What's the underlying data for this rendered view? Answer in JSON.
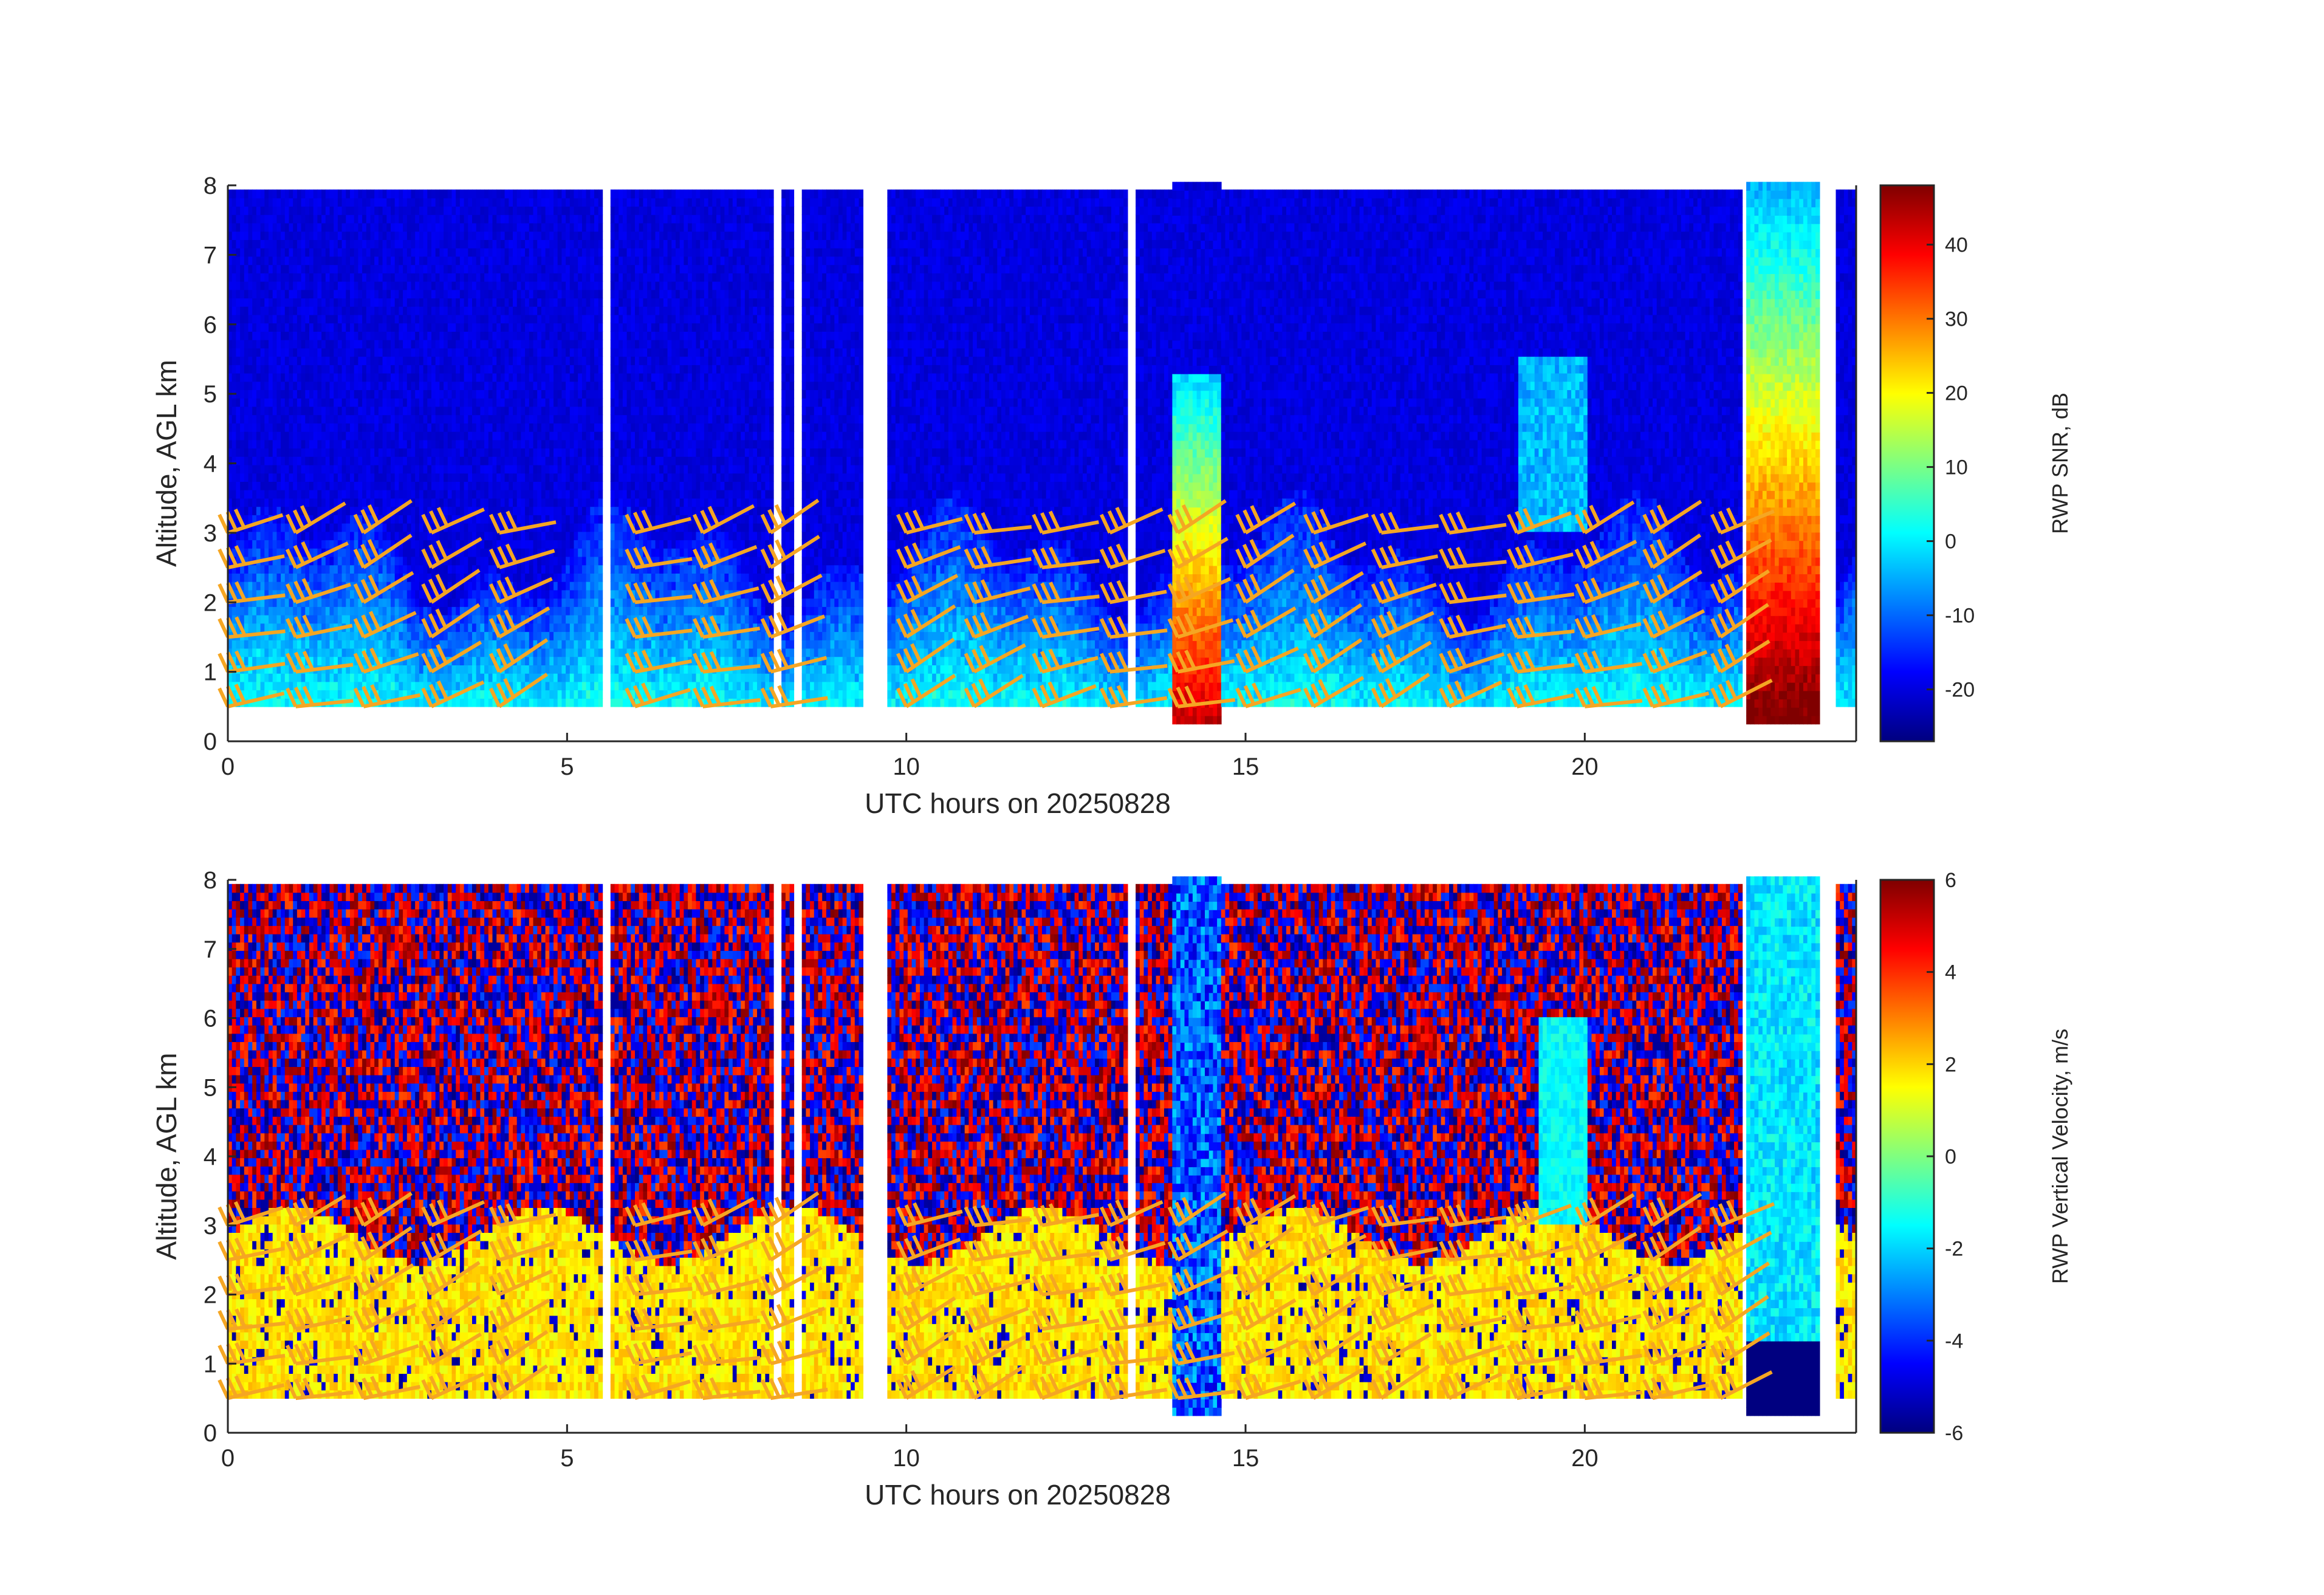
{
  "chart_data": [
    {
      "type": "heatmap",
      "panel": "top",
      "title": "",
      "xlabel": "UTC hours on 20250828",
      "ylabel": "Altitude, AGL km",
      "xlim": [
        0,
        24
      ],
      "ylim": [
        0,
        8
      ],
      "xticks": [
        0,
        5,
        10,
        15,
        20
      ],
      "yticks": [
        0,
        1,
        2,
        3,
        4,
        5,
        6,
        7,
        8
      ],
      "colorbar": {
        "label": "RWP SNR, dB",
        "range": [
          -27,
          48
        ],
        "ticks": [
          -20,
          -10,
          0,
          10,
          20,
          30,
          40
        ],
        "colormap": "jet"
      },
      "data_gaps_hours": [
        [
          5.5,
          5.6
        ],
        [
          8.0,
          8.15
        ],
        [
          8.3,
          8.4
        ],
        [
          9.3,
          9.7
        ],
        [
          13.25,
          13.35
        ],
        [
          22.3,
          22.35
        ],
        [
          23.45,
          23.65
        ],
        [
          23.95,
          24.0
        ]
      ],
      "wind_barbs": {
        "color": "#f5a623"
      }
    },
    {
      "type": "heatmap",
      "panel": "bottom",
      "title": "",
      "xlabel": "UTC hours on 20250828",
      "ylabel": "Altitude, AGL km",
      "xlim": [
        0,
        24
      ],
      "ylim": [
        0,
        8
      ],
      "xticks": [
        0,
        5,
        10,
        15,
        20
      ],
      "yticks": [
        0,
        1,
        2,
        3,
        4,
        5,
        6,
        7,
        8
      ],
      "colorbar": {
        "label": "RWP Vertical Velocity, m/s",
        "range": [
          -6,
          6
        ],
        "ticks": [
          -6,
          -4,
          -2,
          0,
          2,
          4,
          6
        ],
        "colormap": "jet"
      },
      "data_gaps_hours": [
        [
          5.5,
          5.6
        ],
        [
          8.0,
          8.15
        ],
        [
          8.3,
          8.4
        ],
        [
          9.3,
          9.7
        ],
        [
          13.25,
          13.35
        ],
        [
          22.3,
          22.35
        ],
        [
          23.45,
          23.65
        ],
        [
          23.95,
          24.0
        ]
      ],
      "wind_barbs": {
        "color": "#f5a623"
      }
    }
  ]
}
